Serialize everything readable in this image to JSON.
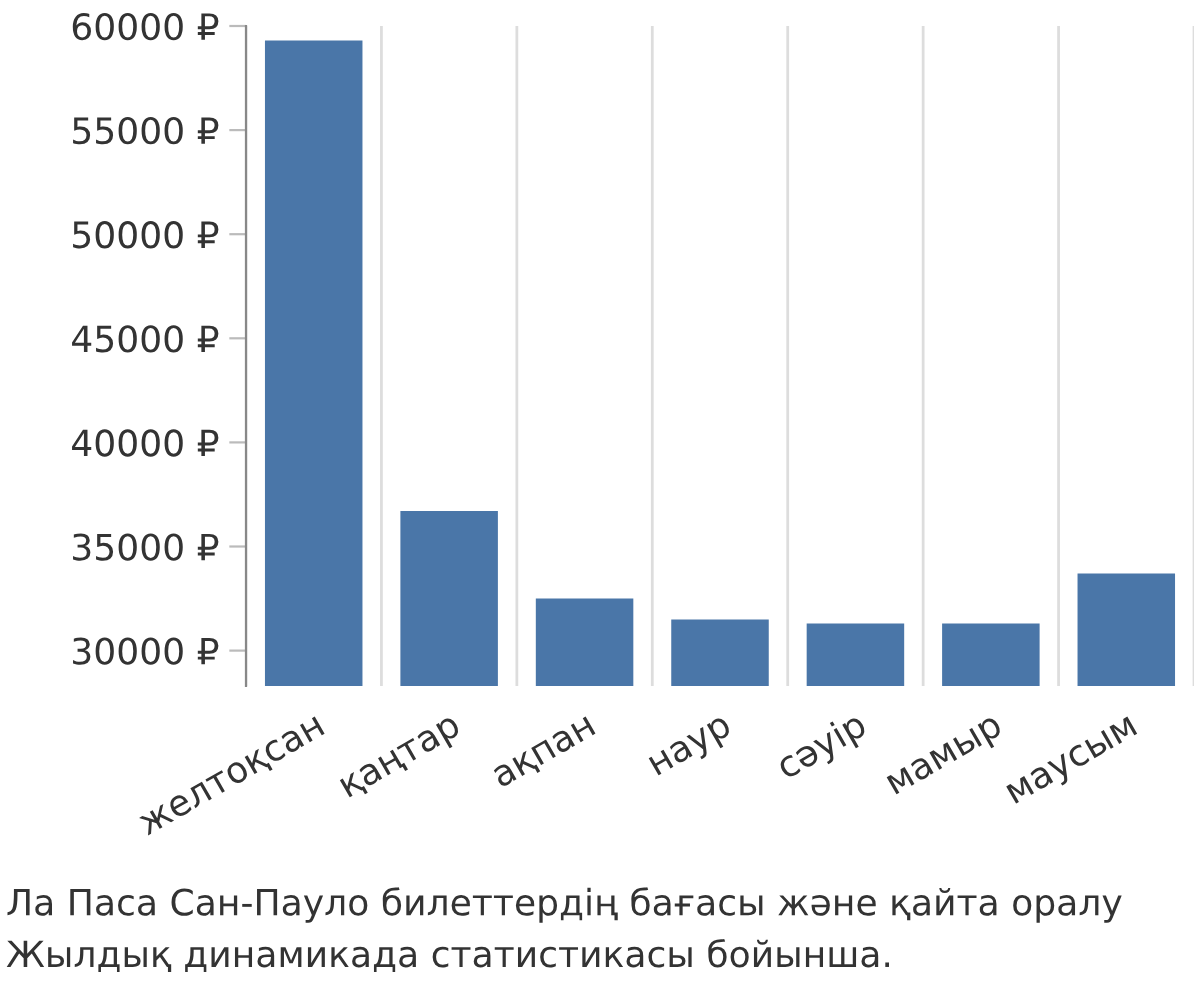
{
  "chart_data": {
    "type": "bar",
    "categories": [
      "желтоқсан",
      "қаңтар",
      "ақпан",
      "наур",
      "сәуір",
      "мамыр",
      "маусым"
    ],
    "values": [
      59300,
      36700,
      32500,
      31500,
      31300,
      31300,
      33700
    ],
    "color": "#4a76a8",
    "ylim": [
      28300,
      60000
    ],
    "yticks": [
      {
        "value": 30000,
        "label": "30000 ₽"
      },
      {
        "value": 35000,
        "label": "35000 ₽"
      },
      {
        "value": 40000,
        "label": "40000 ₽"
      },
      {
        "value": 45000,
        "label": "45000 ₽"
      },
      {
        "value": 50000,
        "label": "50000 ₽"
      },
      {
        "value": 55000,
        "label": "55000 ₽"
      },
      {
        "value": 60000,
        "label": "60000 ₽"
      }
    ],
    "grid": "x",
    "annotations": [
      "Ла Паса Сан-Пауло билеттердің бағасы және қайта оралу",
      "Жылдық динамикада статистикасы бойынша."
    ]
  }
}
